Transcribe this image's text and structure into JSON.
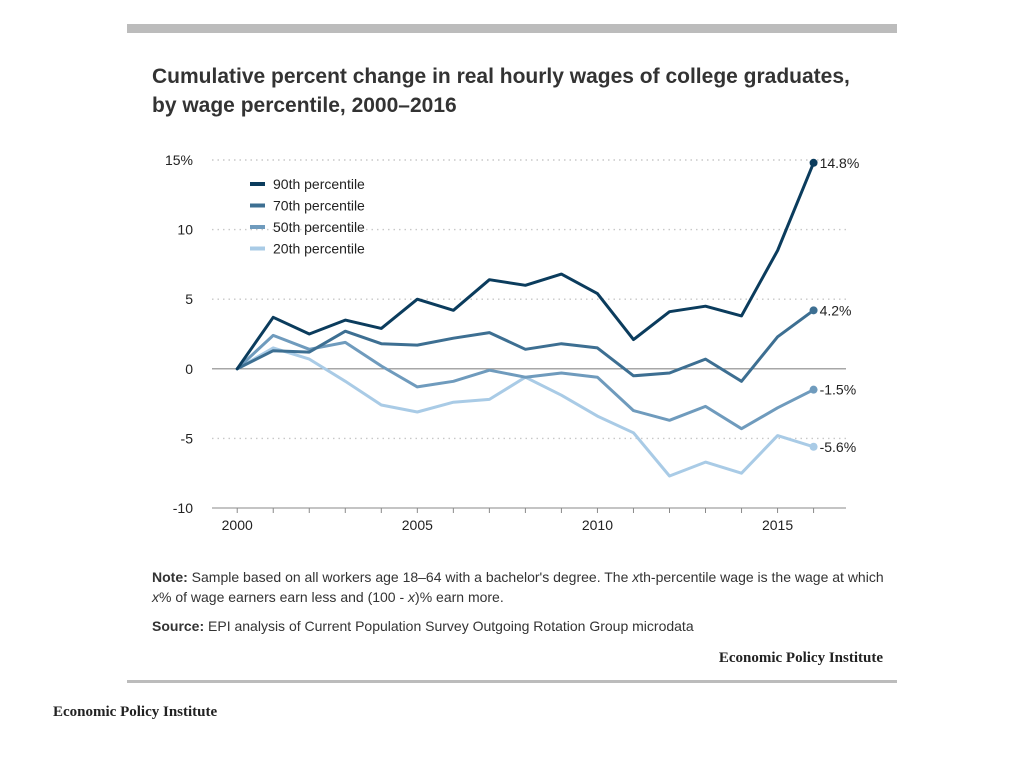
{
  "title": "Cumulative percent change in real hourly wages of college graduates, by wage percentile, 2000–2016",
  "note": {
    "label": "Note:",
    "text_1": " Sample based on all workers age 18–64 with a bachelor's degree. The ",
    "italic_1": "x",
    "text_2": "th-percentile wage is the wage at which ",
    "italic_2": "x",
    "text_3": "% of wage earners earn less and (100 - ",
    "italic_3": "x",
    "text_4": ")% earn more."
  },
  "source": {
    "label": "Source:",
    "text": " EPI analysis of Current Population Survey Outgoing Rotation Group microdata"
  },
  "brand_inner": "Economic Policy Institute",
  "brand_outer": "Economic Policy Institute",
  "chart_data": {
    "type": "line",
    "title": "Cumulative percent change in real hourly wages of college graduates, by wage percentile, 2000–2016",
    "xlabel": "",
    "ylabel": "",
    "x": [
      2000,
      2001,
      2002,
      2003,
      2004,
      2005,
      2006,
      2007,
      2008,
      2009,
      2010,
      2011,
      2012,
      2013,
      2014,
      2015,
      2016
    ],
    "xlim": [
      1999.3,
      2016.9
    ],
    "ylim": [
      -10,
      15
    ],
    "x_ticks": [
      2000,
      2005,
      2010,
      2015
    ],
    "y_ticks": [
      15,
      10,
      5,
      0,
      -5,
      -10
    ],
    "y_tick_labels": [
      "15%",
      "10",
      "5",
      "0",
      "-5",
      "-10"
    ],
    "grid": "horizontal dotted",
    "legend_position": "top-left",
    "series": [
      {
        "name": "90th percentile",
        "color": "#0b3c5d",
        "values": [
          0,
          3.7,
          2.5,
          3.5,
          2.9,
          5.0,
          4.2,
          6.4,
          6.0,
          6.8,
          5.4,
          2.1,
          4.1,
          4.5,
          3.8,
          8.5,
          14.8
        ],
        "end_label": "14.8%"
      },
      {
        "name": "70th percentile",
        "color": "#3d6f92",
        "values": [
          0,
          1.3,
          1.2,
          2.7,
          1.8,
          1.7,
          2.2,
          2.6,
          1.4,
          1.8,
          1.5,
          -0.5,
          -0.3,
          0.7,
          -0.9,
          2.3,
          4.2
        ],
        "end_label": "4.2%"
      },
      {
        "name": "50th percentile",
        "color": "#6f9bbd",
        "values": [
          0,
          2.4,
          1.4,
          1.9,
          0.2,
          -1.3,
          -0.9,
          -0.1,
          -0.6,
          -0.3,
          -0.6,
          -3.0,
          -3.7,
          -2.7,
          -4.3,
          -2.8,
          -1.5
        ],
        "end_label": "-1.5%"
      },
      {
        "name": "20th percentile",
        "color": "#a9cbe6",
        "values": [
          0,
          1.5,
          0.7,
          -0.9,
          -2.6,
          -3.1,
          -2.4,
          -2.2,
          -0.6,
          -1.9,
          -3.4,
          -4.6,
          -7.7,
          -6.7,
          -7.5,
          -4.8,
          -5.6
        ],
        "end_label": "-5.6%"
      }
    ]
  }
}
